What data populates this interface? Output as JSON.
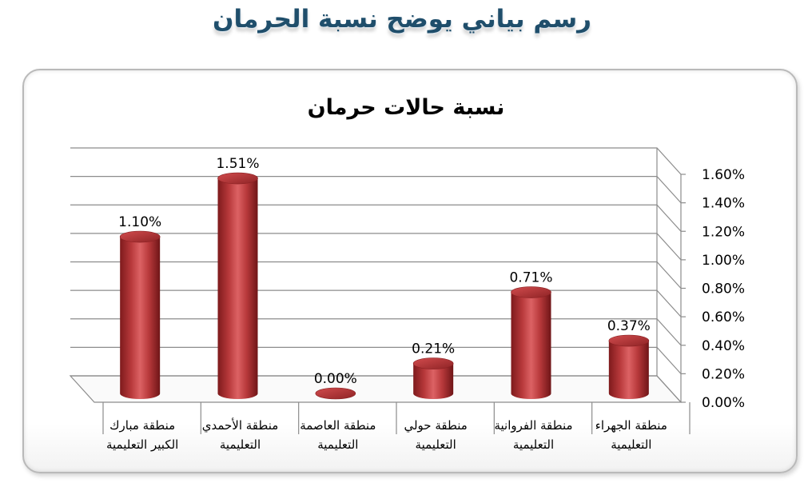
{
  "page": {
    "title": "رسم بياني يوضح نسبة الحرمان"
  },
  "chart_data": {
    "type": "bar",
    "title": "نسبة حالات حرمان",
    "categories": [
      [
        "منطقة مبارك",
        "الكبير التعليمية"
      ],
      [
        "منطقة الأحمدي",
        "التعليمية"
      ],
      [
        "منطقة العاصمة",
        "التعليمية"
      ],
      [
        "منطقة حولي",
        "التعليمية"
      ],
      [
        "منطقة الفروانية",
        "التعليمية"
      ],
      [
        "منطقة الجهراء",
        "التعليمية"
      ]
    ],
    "values": [
      1.1,
      1.51,
      0.0,
      0.21,
      0.71,
      0.37
    ],
    "data_labels": [
      "1.10%",
      "1.51%",
      "0.00%",
      "0.21%",
      "0.71%",
      "0.37%"
    ],
    "ylim": [
      0,
      1.6
    ],
    "yticks": [
      "0.00%",
      "0.20%",
      "0.40%",
      "0.60%",
      "0.80%",
      "1.00%",
      "1.20%",
      "1.40%",
      "1.60%"
    ],
    "y_axis_position": "right",
    "grid": true,
    "legend": "none",
    "bar_color": "#c0393b",
    "style": "3d-cylinder"
  }
}
